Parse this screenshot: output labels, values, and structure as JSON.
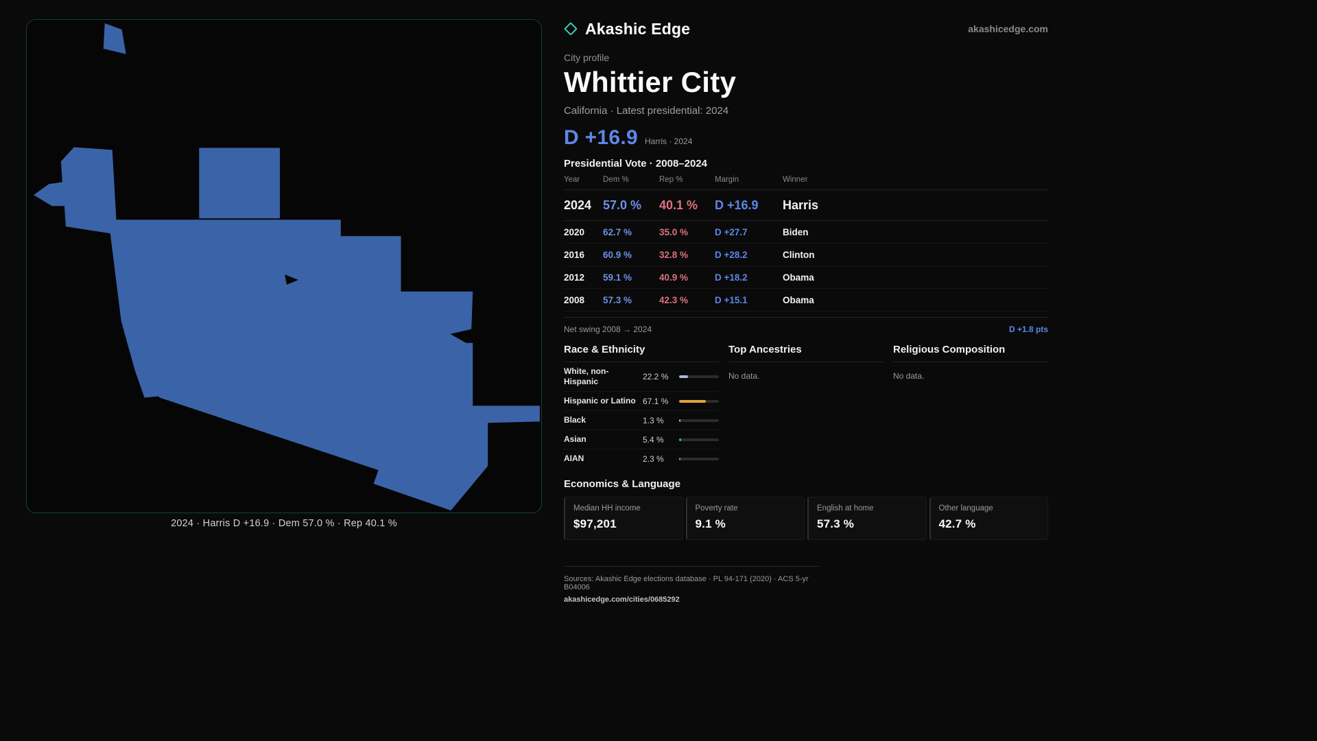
{
  "brand": {
    "name": "Akashic Edge",
    "domain": "akashicedge.com"
  },
  "profile": {
    "kicker": "City profile",
    "title": "Whittier City",
    "subtitle": "California · Latest presidential: 2024"
  },
  "headline": {
    "margin": "D +16.9",
    "note": "Harris · 2024"
  },
  "vote_table": {
    "title": "Presidential Vote · 2008–2024",
    "columns": [
      "Year",
      "Dem %",
      "Rep %",
      "Margin",
      "Winner"
    ],
    "rows": [
      {
        "year": "2024",
        "dem": "57.0 %",
        "rep": "40.1 %",
        "margin": "D +16.9",
        "winner": "Harris"
      },
      {
        "year": "2020",
        "dem": "62.7 %",
        "rep": "35.0 %",
        "margin": "D +27.7",
        "winner": "Biden"
      },
      {
        "year": "2016",
        "dem": "60.9 %",
        "rep": "32.8 %",
        "margin": "D +28.2",
        "winner": "Clinton"
      },
      {
        "year": "2012",
        "dem": "59.1 %",
        "rep": "40.9 %",
        "margin": "D +18.2",
        "winner": "Obama"
      },
      {
        "year": "2008",
        "dem": "57.3 %",
        "rep": "42.3 %",
        "margin": "D +15.1",
        "winner": "Obama"
      }
    ]
  },
  "net_swing": {
    "label": "Net swing 2008 → 2024",
    "value": "D +1.8 pts"
  },
  "race": {
    "title": "Race & Ethnicity",
    "rows": [
      {
        "label": "White, non-Hispanic",
        "value": "22.2 %",
        "pct": 22.2,
        "color": "#a9b7e0"
      },
      {
        "label": "Hispanic or Latino",
        "value": "67.1 %",
        "pct": 67.1,
        "color": "#e2a23f"
      },
      {
        "label": "Black",
        "value": "1.3 %",
        "pct": 1.3,
        "color": "#b9bec7"
      },
      {
        "label": "Asian",
        "value": "5.4 %",
        "pct": 5.4,
        "color": "#35c0a2"
      },
      {
        "label": "AIAN",
        "value": "2.3 %",
        "pct": 2.3,
        "color": "#d08b3c"
      }
    ]
  },
  "ancestries": {
    "title": "Top Ancestries",
    "empty": "No data."
  },
  "religion": {
    "title": "Religious Composition",
    "empty": "No data."
  },
  "economics": {
    "title": "Economics & Language",
    "stats": [
      {
        "label": "Median HH income",
        "value": "$97,201"
      },
      {
        "label": "Poverty rate",
        "value": "9.1 %"
      },
      {
        "label": "English at home",
        "value": "57.3 %"
      },
      {
        "label": "Other language",
        "value": "42.7 %"
      }
    ]
  },
  "map": {
    "caption": "2024 · Harris D +16.9 · Dem 57.0 % · Rep 40.1 %"
  },
  "footer": {
    "sources": "Sources: Akashic Edge elections database · PL 94-171 (2020) · ACS 5-yr B04006",
    "permalink": "akashicedge.com/cities/0685292"
  },
  "colors": {
    "accent_dem": "#5d87e8",
    "accent_rep": "#e0707e",
    "accent_teal": "#3ccfc0",
    "map_fill": "#3b63a8",
    "panel_border": "#173f44"
  }
}
